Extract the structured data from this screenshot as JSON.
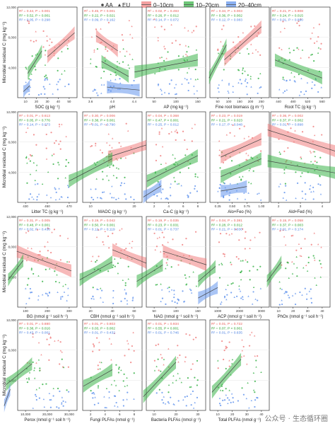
{
  "legend": {
    "shape_items": [
      {
        "label": "AA",
        "marker": "dot"
      },
      {
        "label": "EU",
        "marker": "triangle"
      }
    ],
    "depth_items": [
      {
        "label": "0–10cm",
        "color": "#f08080"
      },
      {
        "label": "10–20cm",
        "color": "#3cb44b"
      },
      {
        "label": "20–40cm",
        "color": "#6495ed"
      }
    ]
  },
  "ylabel": "Microbial residual C (mg kg⁻¹)",
  "y_ticks": [
    "4,000",
    "8,000",
    "12,000"
  ],
  "watermark": "公众号 · 生态循环圈",
  "chart_data": [
    {
      "type": "scatter",
      "row": 0,
      "col": 0,
      "xlabel": "SOC (g kg⁻¹)",
      "xticks": [
        "10",
        "20",
        "30",
        "40",
        "50"
      ],
      "stats": [
        "R² = 0.44, P = 0.001",
        "R² = 0.52, P = 0.001",
        "R² = 0.05, P = 0.298"
      ],
      "series": [
        {
          "name": "0–10cm",
          "fit": [
            [
              30,
              5400
            ],
            [
              55,
              8600
            ]
          ]
        },
        {
          "name": "10–20cm",
          "fit": [
            [
              12,
              3200
            ],
            [
              25,
              6200
            ]
          ]
        },
        {
          "name": "20–40cm",
          "fit": [
            [
              8,
              800
            ],
            [
              14,
              1600
            ]
          ]
        }
      ]
    },
    {
      "type": "scatter",
      "row": 0,
      "col": 1,
      "xlabel": "pH",
      "xticks": [
        "3.6",
        "4.0",
        "4.4"
      ],
      "stats": [
        "R² = 0.45, P < 0.001",
        "R² = 0.22, P = 0.021",
        "R² = 0.09, P = 0.162"
      ],
      "series": [
        {
          "name": "0–10cm",
          "fit": [
            [
              3.7,
              8200
            ],
            [
              4.1,
              6200
            ]
          ]
        },
        {
          "name": "10–20cm",
          "fit": [
            [
              3.8,
              4800
            ],
            [
              4.3,
              2800
            ]
          ]
        },
        {
          "name": "20–40cm",
          "fit": [
            [
              3.9,
              1400
            ],
            [
              4.5,
              1000
            ]
          ]
        }
      ]
    },
    {
      "type": "scatter",
      "row": 0,
      "col": 2,
      "xlabel": "AP (mg kg⁻¹)",
      "xticks": [
        "50",
        "100",
        "150"
      ],
      "stats": [
        "R² = 0.02, P = 0.493",
        "R² = 0.26, P = 0.012",
        "R² = 0.14, P = 0.072"
      ],
      "series": [
        {
          "name": "10–20cm",
          "fit": [
            [
              5,
              3400
            ],
            [
              150,
              5000
            ]
          ]
        }
      ]
    },
    {
      "type": "scatter",
      "row": 0,
      "col": 3,
      "xlabel": "Fine root biomass (g m⁻²)",
      "xticks": [
        "50",
        "100",
        "150",
        "200",
        "250"
      ],
      "stats": [
        "R² = 0.34, P = 0.003",
        "R² = 0.36, P = 0.002",
        "R² = 0.12, P = 0.083"
      ],
      "series": [
        {
          "name": "0–10cm",
          "fit": [
            [
              80,
              5000
            ],
            [
              250,
              9400
            ]
          ]
        },
        {
          "name": "10–20cm",
          "fit": [
            [
              10,
              2600
            ],
            [
              90,
              7000
            ]
          ]
        }
      ]
    },
    {
      "type": "scatter",
      "row": 0,
      "col": 4,
      "xlabel": "Root TC (g kg⁻¹)",
      "xticks": [
        "440",
        "480",
        "520",
        "560"
      ],
      "stats": [
        "R² = 0.21, P = 0.908",
        "R² = 0.24, P = 0.015",
        "R² = 0.01, P = 0.890"
      ],
      "series": [
        {
          "name": "10–20cm",
          "fit": [
            [
              430,
              5000
            ],
            [
              560,
              2600
            ]
          ]
        }
      ]
    },
    {
      "type": "scatter",
      "row": 1,
      "col": 0,
      "xlabel": "Litter TC (g kg⁻¹)",
      "xticks": [
        "430",
        "450",
        "470"
      ],
      "stats": [
        "R² = 0.01, P = 0.613",
        "R² = 0.05, P = 0.776",
        "R² = 0.14, P = 0.073"
      ],
      "series": []
    },
    {
      "type": "scatter",
      "row": 1,
      "col": 1,
      "xlabel": "MAOC (g kg⁻¹)",
      "xticks": [
        "10",
        "20"
      ],
      "stats": [
        "R² = 0.30, P = 0.006",
        "R² = 0.38, P < 0.001",
        "R² = 0.01, P = 0.790"
      ],
      "series": [
        {
          "name": "0–10cm",
          "fit": [
            [
              14,
              6000
            ],
            [
              26,
              8200
            ]
          ]
        },
        {
          "name": "10–20cm",
          "fit": [
            [
              5,
              2800
            ],
            [
              15,
              5800
            ]
          ]
        }
      ]
    },
    {
      "type": "scatter",
      "row": 1,
      "col": 2,
      "xlabel": "Ca-C (g kg⁻¹)",
      "xticks": [
        "2",
        "4",
        "6",
        "8"
      ],
      "stats": [
        "R² = 0.04, P = 0.368",
        "R² = 0.47, P < 0.001",
        "R² = 0.25, P = 0.012"
      ],
      "series": [
        {
          "name": "10–20cm",
          "fit": [
            [
              1,
              2800
            ],
            [
              8,
              6200
            ]
          ]
        },
        {
          "name": "20–40cm",
          "fit": [
            [
              0.5,
              700
            ],
            [
              3,
              2200
            ]
          ]
        }
      ]
    },
    {
      "type": "scatter",
      "row": 1,
      "col": 3,
      "xlabel": "Alo+Feo (%)",
      "xticks": [
        "0.25",
        "0.50",
        "0.75",
        "1.00"
      ],
      "stats": [
        "R² = 0.23, P = 0.019",
        "R² = 0.21, P = 0.023",
        "R² = 0.17, P = 0.048"
      ],
      "series": [
        {
          "name": "0–10cm",
          "fit": [
            [
              0.3,
              6000
            ],
            [
              1.0,
              8400
            ]
          ]
        },
        {
          "name": "10–20cm",
          "fit": [
            [
              0.3,
              3400
            ],
            [
              1.0,
              5800
            ]
          ]
        },
        {
          "name": "20–40cm",
          "fit": [
            [
              0.3,
              1500
            ],
            [
              0.75,
              2100
            ]
          ]
        }
      ]
    },
    {
      "type": "scatter",
      "row": 1,
      "col": 4,
      "xlabel": "Ald+Fed (%)",
      "xticks": [
        "2",
        "3",
        "4"
      ],
      "stats": [
        "R² = 0.36, P = 0.002",
        "R² = 0.37, P = 0.002",
        "R² = 0.01, P = 0.898"
      ],
      "series": [
        {
          "name": "0–10cm",
          "fit": [
            [
              1.5,
              9600
            ],
            [
              4.8,
              6600
            ]
          ]
        },
        {
          "name": "10–20cm",
          "fit": [
            [
              1.5,
              5500
            ],
            [
              4.8,
              3800
            ]
          ]
        }
      ]
    },
    {
      "type": "scatter",
      "row": 2,
      "col": 0,
      "xlabel": "BG (nmol g⁻¹ soil h⁻¹)",
      "xticks": [
        "100",
        "200",
        "300"
      ],
      "stats": [
        "R² = 0.31, P = 0.005",
        "R² = 0.48, P < 0.001",
        "R² = 0.02, P = 0.430"
      ],
      "series": [
        {
          "name": "0–10cm",
          "fit": [
            [
              60,
              7400
            ],
            [
              310,
              4800
            ]
          ]
        },
        {
          "name": "10–20cm",
          "fit": [
            [
              20,
              3600
            ],
            [
              90,
              6200
            ]
          ]
        }
      ]
    },
    {
      "type": "scatter",
      "row": 2,
      "col": 1,
      "xlabel": "CBH (nmol g⁻¹ soil h⁻¹)",
      "xticks": [
        "20",
        "40",
        "60"
      ],
      "stats": [
        "R² = 0.19, P = 0.042",
        "R² = 0.50, P < 0.001",
        "R² = 0.12, P = 0.119"
      ],
      "series": [
        {
          "name": "0–10cm",
          "fit": [
            [
              40,
              7600
            ],
            [
              75,
              5600
            ]
          ]
        },
        {
          "name": "10–20cm",
          "fit": [
            [
              10,
              3600
            ],
            [
              40,
              6000
            ]
          ]
        }
      ]
    },
    {
      "type": "scatter",
      "row": 2,
      "col": 2,
      "xlabel": "NAG (nmol g⁻¹ soil h⁻¹)",
      "xticks": [
        "50",
        "100",
        "150"
      ],
      "stats": [
        "R² = 0.19, P = 0.035",
        "R² = 0.23, P = 0.031",
        "R² = 0.01, P = 0.737"
      ],
      "series": [
        {
          "name": "0–10cm",
          "fit": [
            [
              70,
              7400
            ],
            [
              170,
              5600
            ]
          ]
        },
        {
          "name": "10–20cm",
          "fit": [
            [
              10,
              3400
            ],
            [
              70,
              5600
            ]
          ]
        }
      ]
    },
    {
      "type": "scatter",
      "row": 2,
      "col": 3,
      "xlabel": "ACP (nmol g⁻¹ soil h⁻¹)",
      "xticks": [
        "1000",
        "2000",
        "3000"
      ],
      "stats": [
        "R² = 0.04, P = 0.381",
        "R² = 0.28, P = 0.012",
        "R² = 0.21, P = 0.030"
      ],
      "series": [
        {
          "name": "10–20cm",
          "fit": [
            [
              100,
              3400
            ],
            [
              900,
              5400
            ]
          ]
        },
        {
          "name": "20–40cm",
          "fit": [
            [
              100,
              1200
            ],
            [
              1000,
              2600
            ]
          ]
        }
      ]
    },
    {
      "type": "scatter",
      "row": 2,
      "col": 4,
      "xlabel": "PhOx (nmol g⁻¹ soil h⁻¹)",
      "xticks": [
        "10",
        "20",
        "30",
        "40"
      ],
      "stats": [
        "R² = 0.15, P = 0.058",
        "R² = 0.37, P = 0.003",
        "R² = 0.01, P = 0.174"
      ],
      "series": [
        {
          "name": "10–20cm",
          "fit": [
            [
              2,
              3400
            ],
            [
              12,
              6000
            ]
          ]
        }
      ]
    },
    {
      "type": "scatter",
      "row": 3,
      "col": 0,
      "xlabel": "Perox (nmol g⁻¹ soil h⁻¹)",
      "xticks": [
        "10,000",
        "20,000",
        "30,000"
      ],
      "stats": [
        "R² = 0.01, P = 0.880",
        "R² = 0.38, P = 0.016",
        "R² = 0.43, P = 0.001"
      ],
      "series": [
        {
          "name": "10–20cm",
          "fit": [
            [
              1000,
              3400
            ],
            [
              13000,
              6200
            ]
          ]
        },
        {
          "name": "20–40cm",
          "fit": [
            [
              200,
              600
            ],
            [
              3000,
              2800
            ]
          ]
        }
      ]
    },
    {
      "type": "scatter",
      "row": 3,
      "col": 1,
      "xlabel": "Fungi PLFAs (nmol g⁻¹)",
      "xticks": [
        "2",
        "4",
        "6",
        "8"
      ],
      "stats": [
        "R² = 0.01, P = 0.803",
        "R² = 0.03, P = 0.002",
        "R² = 0.01, P = 0.432"
      ],
      "series": [
        {
          "name": "10–20cm",
          "fit": [
            [
              1,
              3200
            ],
            [
              5,
              5400
            ]
          ]
        }
      ]
    },
    {
      "type": "scatter",
      "row": 3,
      "col": 2,
      "xlabel": "Bacteria PLFAs (nmol g⁻¹)",
      "xticks": [
        "10",
        "20",
        "30"
      ],
      "stats": [
        "R² = 0.01, P = 0.934",
        "R² = 0.55, P < 0.001",
        "R² = 0.01, P = 0.746"
      ],
      "series": [
        {
          "name": "10–20cm",
          "fit": [
            [
              5,
              1800
            ],
            [
              20,
              6400
            ]
          ]
        }
      ]
    },
    {
      "type": "scatter",
      "row": 3,
      "col": 3,
      "xlabel": "Total PLFAs (nmol g⁻¹)",
      "xticks": [
        "10",
        "20",
        "30",
        "40"
      ],
      "stats": [
        "R² = 0.01, P = 0.722",
        "R² = 0.07, P < 0.001",
        "R² = 0.01, P = 0.635"
      ],
      "series": [
        {
          "name": "10–20cm",
          "fit": [
            [
              6,
              2400
            ],
            [
              26,
              6800
            ]
          ]
        }
      ]
    }
  ]
}
